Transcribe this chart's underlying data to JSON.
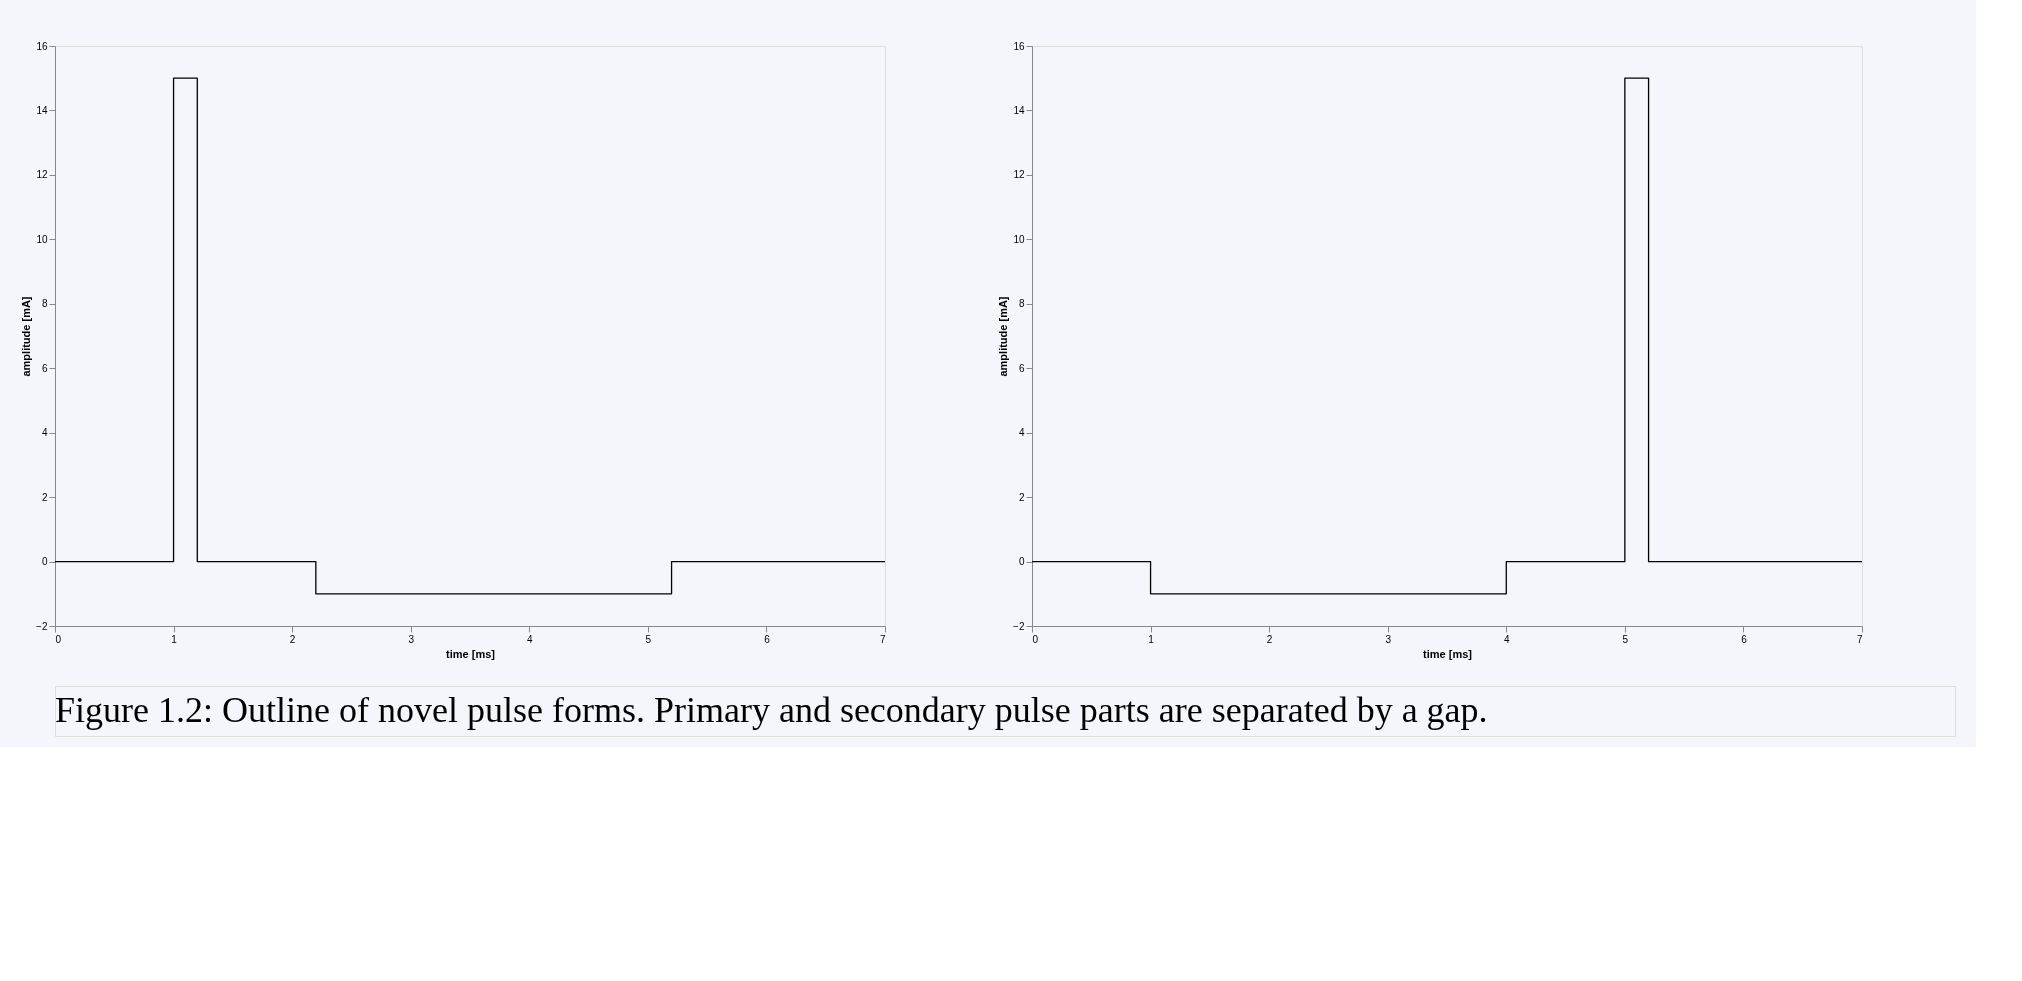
{
  "chart_data": [
    {
      "type": "step",
      "xlabel": "time [ms]",
      "ylabel": "amplitude [mA]",
      "x": [
        0,
        1,
        1.2,
        2.2,
        5.2,
        7
      ],
      "values": [
        0,
        15,
        0,
        -1,
        0,
        0
      ],
      "color": "#000000",
      "xlim": [
        0,
        7
      ],
      "ylim": [
        -2,
        16
      ],
      "xticks": [
        0,
        1,
        2,
        3,
        4,
        5,
        6,
        7
      ],
      "yticks": [
        -2,
        0,
        2,
        4,
        6,
        8,
        10,
        12,
        14,
        16
      ],
      "grid": false,
      "annotations": [
        "Figure 1.2: Outline of novel pulse forms. Primary and secondary pulse parts are separated by a gap."
      ]
    },
    {
      "type": "step",
      "xlabel": "time [ms]",
      "ylabel": "amplitude [mA]",
      "x": [
        0,
        1,
        4,
        5,
        5.2,
        7
      ],
      "values": [
        0,
        -1,
        0,
        15,
        0,
        0
      ],
      "color": "#000000",
      "xlim": [
        0,
        7
      ],
      "ylim": [
        -2,
        16
      ],
      "xticks": [
        0,
        1,
        2,
        3,
        4,
        5,
        6,
        7
      ],
      "yticks": [
        -2,
        0,
        2,
        4,
        6,
        8,
        10,
        12,
        14,
        16
      ],
      "grid": false
    }
  ]
}
